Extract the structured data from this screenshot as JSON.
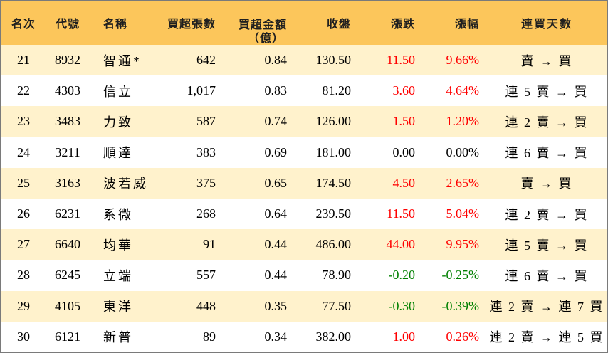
{
  "columns": {
    "rank": "名次",
    "code": "代號",
    "name": "名稱",
    "volume": "買超張數",
    "amount_line1": "買超金額",
    "amount_line2": "（億）",
    "close": "收盤",
    "change": "漲跌",
    "pct": "漲幅",
    "days": "連買天數"
  },
  "colors": {
    "header_bg": "#fcc65b",
    "stripe_bg": "#fff2cc",
    "up": "#ff0000",
    "down": "#008000"
  },
  "rows": [
    {
      "rank": "21",
      "code": "8932",
      "name": "智通*",
      "volume": "642",
      "amount": "0.84",
      "close": "130.50",
      "change": "11.50",
      "pct": "9.66%",
      "direction": "up",
      "days": "賣 → 買"
    },
    {
      "rank": "22",
      "code": "4303",
      "name": "信立",
      "volume": "1,017",
      "amount": "0.83",
      "close": "81.20",
      "change": "3.60",
      "pct": "4.64%",
      "direction": "up",
      "days": "連 5 賣 → 買"
    },
    {
      "rank": "23",
      "code": "3483",
      "name": "力致",
      "volume": "587",
      "amount": "0.74",
      "close": "126.00",
      "change": "1.50",
      "pct": "1.20%",
      "direction": "up",
      "days": "連 2 賣 → 買"
    },
    {
      "rank": "24",
      "code": "3211",
      "name": "順達",
      "volume": "383",
      "amount": "0.69",
      "close": "181.00",
      "change": "0.00",
      "pct": "0.00%",
      "direction": "flat",
      "days": "連 6 賣 → 買"
    },
    {
      "rank": "25",
      "code": "3163",
      "name": "波若威",
      "volume": "375",
      "amount": "0.65",
      "close": "174.50",
      "change": "4.50",
      "pct": "2.65%",
      "direction": "up",
      "days": "賣 → 買"
    },
    {
      "rank": "26",
      "code": "6231",
      "name": "系微",
      "volume": "268",
      "amount": "0.64",
      "close": "239.50",
      "change": "11.50",
      "pct": "5.04%",
      "direction": "up",
      "days": "連 2 賣 → 買"
    },
    {
      "rank": "27",
      "code": "6640",
      "name": "均華",
      "volume": "91",
      "amount": "0.44",
      "close": "486.00",
      "change": "44.00",
      "pct": "9.95%",
      "direction": "up",
      "days": "連 5 賣 → 買"
    },
    {
      "rank": "28",
      "code": "6245",
      "name": "立端",
      "volume": "557",
      "amount": "0.44",
      "close": "78.90",
      "change": "-0.20",
      "pct": "-0.25%",
      "direction": "down",
      "days": "連 6 賣 → 買"
    },
    {
      "rank": "29",
      "code": "4105",
      "name": "東洋",
      "volume": "448",
      "amount": "0.35",
      "close": "77.50",
      "change": "-0.30",
      "pct": "-0.39%",
      "direction": "down",
      "days": "連 2 賣 → 連 7 買"
    },
    {
      "rank": "30",
      "code": "6121",
      "name": "新普",
      "volume": "89",
      "amount": "0.34",
      "close": "382.00",
      "change": "1.00",
      "pct": "0.26%",
      "direction": "up",
      "days": "連 2 賣 → 連 5 買"
    }
  ]
}
